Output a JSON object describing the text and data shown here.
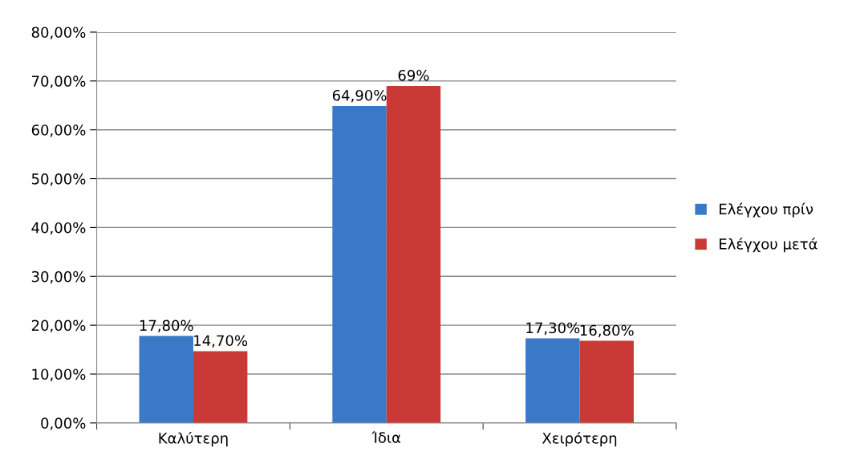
{
  "chart_data": {
    "type": "bar",
    "categories": [
      "Καλύτερη",
      "Ίδια",
      "Χειρότερη"
    ],
    "series": [
      {
        "name": "Ελέγχου πρίν",
        "color": "#3a78c8",
        "values": [
          17.8,
          64.9,
          17.3
        ],
        "value_labels": [
          "17,80%",
          "64,90%",
          "17,30%"
        ]
      },
      {
        "name": "Ελέγχου μετά",
        "color": "#c93a36",
        "values": [
          14.7,
          69,
          16.8
        ],
        "value_labels": [
          "14,70%",
          "69%",
          "16,80%"
        ]
      }
    ],
    "ylim": [
      0,
      80
    ],
    "yticks": [
      {
        "value": 0,
        "label": "0,00%"
      },
      {
        "value": 10,
        "label": "10,00%"
      },
      {
        "value": 20,
        "label": "20,00%"
      },
      {
        "value": 30,
        "label": "30,00%"
      },
      {
        "value": 40,
        "label": "40,00%"
      },
      {
        "value": 50,
        "label": "50,00%"
      },
      {
        "value": 60,
        "label": "60,00%"
      },
      {
        "value": 70,
        "label": "70,00%"
      },
      {
        "value": 80,
        "label": "80,00%"
      }
    ],
    "grid": "y",
    "legend": "right"
  }
}
